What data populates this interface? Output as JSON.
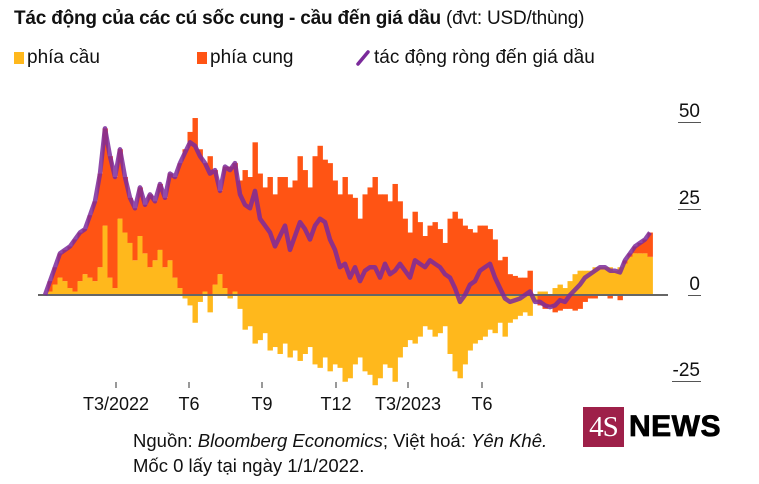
{
  "header": {
    "title_bold": "Tác động của các cú sốc cung - cầu đến giá dầu",
    "title_unit": "(đvt: USD/thùng)"
  },
  "legend": [
    {
      "label": "phía cầu",
      "color": "#ffb81c",
      "shape": "square"
    },
    {
      "label": "phía cung",
      "color": "#ff5414",
      "shape": "square"
    },
    {
      "label": "tác động ròng đến giá dầu",
      "color": "#7b2a9b",
      "shape": "line"
    }
  ],
  "footer": {
    "source_prefix": "Nguồn: ",
    "source_name": "Bloomberg Economics",
    "separator": "; Việt hoá: ",
    "translator": "Yên Khê.",
    "note": "Mốc 0 lấy tại ngày 1/1/2022."
  },
  "logo": {
    "box_text": "4S",
    "text": "NEWS",
    "color": "#9e2049"
  },
  "chart_data": {
    "type": "area",
    "title": "Tác động của các cú sốc cung - cầu đến giá dầu (đvt: USD/thùng)",
    "xlabel": "",
    "ylabel": "USD/thùng",
    "ylim": [
      -25,
      50
    ],
    "yticks": [
      50,
      25,
      0,
      -25
    ],
    "xticks": [
      {
        "label": "T3/2022",
        "index": 14.2
      },
      {
        "label": "T6",
        "index": 28.8
      },
      {
        "label": "T9",
        "index": 43.4
      },
      {
        "label": "T12",
        "index": 58.2
      },
      {
        "label": "T3/2023",
        "index": 72.6
      },
      {
        "label": "T6",
        "index": 87.4
      }
    ],
    "grid": false,
    "legend_position": "top-left",
    "baseline_note": "Mốc 0 lấy tại ngày 1/1/2022",
    "stacked": true,
    "series": [
      {
        "name": "phía cầu",
        "type": "bar",
        "color": "#ffb81c",
        "values": [
          0,
          1,
          3,
          5,
          4,
          2,
          1,
          4,
          6,
          5,
          4,
          8,
          20,
          5,
          2,
          22,
          18,
          15,
          10,
          17,
          12,
          8,
          10,
          13,
          8,
          10,
          5,
          2,
          -1,
          -3,
          -8,
          -2,
          1,
          -5,
          3,
          6,
          2,
          -1,
          1,
          -4,
          -10,
          -9,
          -14,
          -13,
          -11,
          -16,
          -15,
          -17,
          -14,
          -18,
          -16,
          -19,
          -17,
          -15,
          -20,
          -21,
          -18,
          -22,
          -20,
          -21,
          -25,
          -24,
          -20,
          -18,
          -22,
          -23,
          -26,
          -24,
          -20,
          -21,
          -25,
          -18,
          -15,
          -13,
          -14,
          -12,
          -9,
          -10,
          -12,
          -11,
          -9,
          -17,
          -22,
          -24,
          -20,
          -16,
          -14,
          -13,
          -12,
          -10,
          -11,
          -8,
          -12,
          -8,
          -7,
          -6,
          -5,
          -6,
          -2,
          1,
          1,
          0,
          2,
          3,
          2,
          4,
          6,
          7,
          7,
          7,
          8,
          8,
          8,
          8,
          7,
          8,
          9,
          11,
          12,
          12,
          12,
          11
        ]
      },
      {
        "name": "phía cung",
        "type": "bar",
        "color": "#ff5414",
        "values": [
          0,
          3,
          5,
          7,
          9,
          12,
          15,
          14,
          13,
          18,
          23,
          27,
          28,
          35,
          32,
          20,
          16,
          13,
          15,
          14,
          14,
          21,
          17,
          19,
          20,
          25,
          29,
          36,
          42,
          47,
          51,
          42,
          37,
          40,
          33,
          24,
          35,
          37,
          37,
          33,
          36,
          34,
          44,
          35,
          31,
          34,
          29,
          34,
          34,
          31,
          33,
          40,
          36,
          31,
          40,
          43,
          39,
          38,
          33,
          29,
          34,
          29,
          28,
          22,
          29,
          31,
          34,
          29,
          29,
          27,
          32,
          27,
          22,
          18,
          24,
          21,
          17,
          20,
          21,
          19,
          15,
          22,
          24,
          22,
          20,
          19,
          18,
          20,
          20,
          19,
          16,
          10,
          11,
          6,
          5.5,
          5,
          5,
          7,
          0,
          -3,
          -4,
          -3.5,
          -5,
          -4.5,
          -4,
          -4,
          -4.5,
          -4,
          -2,
          -1,
          -1,
          0,
          0,
          -1,
          0,
          -1.5,
          1,
          1,
          2,
          3,
          4,
          7
        ]
      },
      {
        "name": "tác động ròng đến giá dầu",
        "type": "line",
        "color": "#7b2a9b",
        "values": [
          0,
          4,
          8,
          12,
          13,
          14,
          16,
          18,
          19,
          23,
          27,
          35,
          48,
          40,
          34,
          42,
          34,
          28,
          25,
          31,
          26,
          29,
          27,
          32,
          28,
          35,
          34,
          38,
          41,
          44,
          43,
          40,
          38,
          35,
          36,
          30,
          37,
          36,
          38,
          29,
          26,
          25,
          30,
          22,
          20,
          18,
          14,
          17,
          20,
          13,
          17,
          21,
          19,
          16,
          20,
          22,
          21,
          16,
          13,
          8,
          9,
          5,
          8,
          4,
          7,
          8,
          8,
          5,
          9,
          6,
          7,
          9,
          7,
          5,
          10,
          9,
          8,
          10,
          9,
          8,
          6,
          5,
          2,
          -2,
          0,
          3,
          4,
          7,
          8,
          9,
          5,
          2,
          -1,
          -2,
          -1.5,
          -1,
          0,
          1,
          -2,
          -2,
          -3,
          -3.5,
          -3,
          -1.5,
          -2,
          0,
          1.5,
          3,
          5,
          6,
          7,
          8,
          8,
          7,
          7,
          6.5,
          10,
          12,
          14,
          15,
          16,
          18
        ]
      }
    ]
  }
}
